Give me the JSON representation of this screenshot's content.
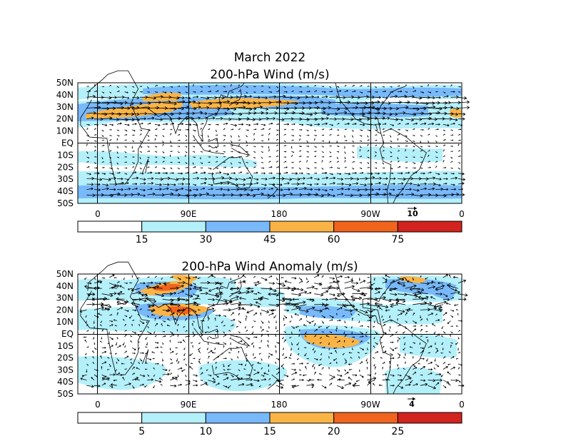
{
  "title": "March 2022",
  "panels": [
    {
      "id": "wind",
      "title": "200-hPa Wind (m/s)",
      "lat_labels": [
        "50N",
        "40N",
        "30N",
        "20N",
        "10N",
        "EQ",
        "10S",
        "20S",
        "30S",
        "40S",
        "50S"
      ],
      "lon_labels": [
        "0",
        "90E",
        "180",
        "90W",
        "0"
      ],
      "reference_vector": "10",
      "colorbar": {
        "labels": [
          "15",
          "30",
          "45",
          "60",
          "75"
        ],
        "colors": [
          "#ffffff",
          "#b4f0fa",
          "#78b9fa",
          "#fab446",
          "#f0641e",
          "#d2231e"
        ]
      }
    },
    {
      "id": "anomaly",
      "title": "200-hPa Wind Anomaly (m/s)",
      "lat_labels": [
        "50N",
        "40N",
        "30N",
        "20N",
        "10N",
        "EQ",
        "10S",
        "20S",
        "30S",
        "40S",
        "50S"
      ],
      "lon_labels": [
        "0",
        "90E",
        "180",
        "90W",
        "0"
      ],
      "reference_vector": "4",
      "colorbar": {
        "labels": [
          "5",
          "10",
          "15",
          "20",
          "25"
        ],
        "colors": [
          "#ffffff",
          "#b4f0fa",
          "#78b9fa",
          "#fab446",
          "#f0641e",
          "#d2231e"
        ]
      }
    }
  ]
}
